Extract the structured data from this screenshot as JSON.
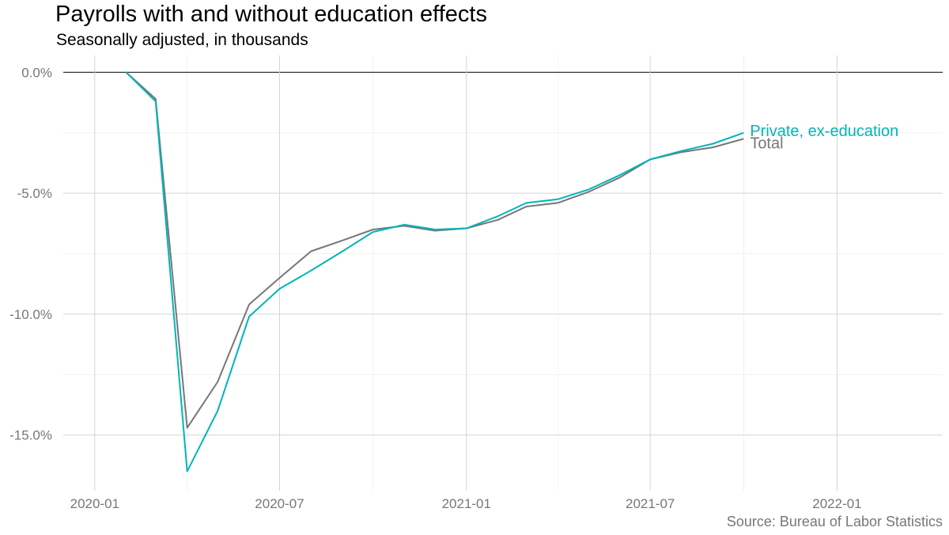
{
  "chart_data": {
    "type": "line",
    "title": "Payrolls with and without education effects",
    "subtitle": "Seasonally adjusted, in thousands",
    "source": "Source: Bureau of Labor Statistics",
    "xlabel": "",
    "ylabel": "",
    "x_ticks": [
      "2020-01",
      "2020-07",
      "2021-01",
      "2021-07",
      "2022-01"
    ],
    "y_ticks": [
      {
        "value": 0,
        "label": "0.0%"
      },
      {
        "value": -5,
        "label": "-5.0%"
      },
      {
        "value": -10,
        "label": "-10.0%"
      },
      {
        "value": -15,
        "label": "-15.0%"
      }
    ],
    "xlim": [
      "2019-12-01",
      "2022-04-15"
    ],
    "ylim": [
      -17.3,
      0.7
    ],
    "grid": true,
    "x": [
      "2020-02-01",
      "2020-03-01",
      "2020-04-01",
      "2020-05-01",
      "2020-06-01",
      "2020-07-01",
      "2020-08-01",
      "2020-09-01",
      "2020-10-01",
      "2020-11-01",
      "2020-12-01",
      "2021-01-01",
      "2021-02-01",
      "2021-03-01",
      "2021-04-01",
      "2021-05-01",
      "2021-06-01",
      "2021-07-01",
      "2021-08-01",
      "2021-09-01",
      "2021-10-01"
    ],
    "series": [
      {
        "name": "Total",
        "color": "#777777",
        "values": [
          0.0,
          -1.1,
          -14.7,
          -12.8,
          -9.6,
          -8.5,
          -7.4,
          -6.95,
          -6.5,
          -6.35,
          -6.55,
          -6.45,
          -6.1,
          -5.55,
          -5.4,
          -4.95,
          -4.35,
          -3.6,
          -3.3,
          -3.1,
          -2.75
        ]
      },
      {
        "name": "Private, ex-education",
        "color": "#00b5b8",
        "values": [
          0.0,
          -1.2,
          -16.5,
          -14.0,
          -10.1,
          -8.95,
          -8.2,
          -7.4,
          -6.6,
          -6.3,
          -6.5,
          -6.45,
          -5.95,
          -5.4,
          -5.25,
          -4.85,
          -4.25,
          -3.6,
          -3.25,
          -2.95,
          -2.5
        ]
      }
    ]
  }
}
